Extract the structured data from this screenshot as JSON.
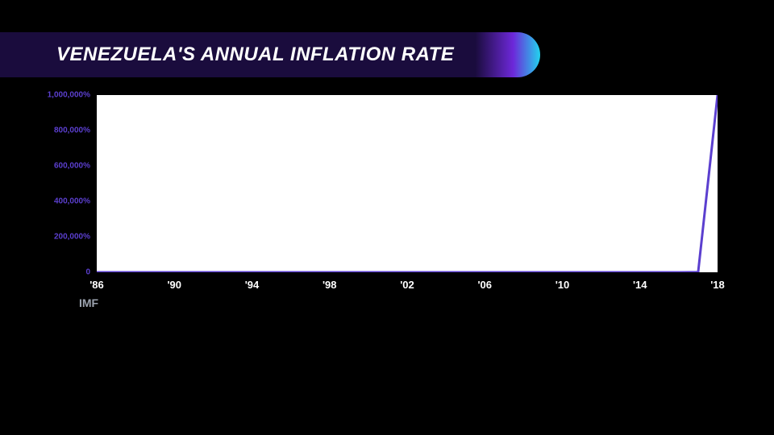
{
  "title": "VENEZUELA'S ANNUAL INFLATION RATE",
  "source": "IMF",
  "chart": {
    "type": "line",
    "background_color": "#000000",
    "plot_background_color": "#ffffff",
    "title_bar_gradient": [
      "#1a0c3d",
      "#6d28d9",
      "#22d3ee"
    ],
    "line_color": "#5b3fcf",
    "line_width": 3,
    "y_axis": {
      "color": "#5b3fcf",
      "fontsize": 10,
      "fontweight": 700,
      "min": 0,
      "max": 1000000,
      "ticks": [
        {
          "value": 0,
          "label": "0"
        },
        {
          "value": 200000,
          "label": "200,000%"
        },
        {
          "value": 400000,
          "label": "400,000%"
        },
        {
          "value": 600000,
          "label": "600,000%"
        },
        {
          "value": 800000,
          "label": "800,000%"
        },
        {
          "value": 1000000,
          "label": "1,000,000%"
        }
      ]
    },
    "x_axis": {
      "color": "#ffffff",
      "fontsize": 13,
      "fontweight": 700,
      "min": 1986,
      "max": 2018,
      "ticks": [
        {
          "value": 1986,
          "label": "'86"
        },
        {
          "value": 1990,
          "label": "'90"
        },
        {
          "value": 1994,
          "label": "'94"
        },
        {
          "value": 1998,
          "label": "'98"
        },
        {
          "value": 2002,
          "label": "'02"
        },
        {
          "value": 2006,
          "label": "'06"
        },
        {
          "value": 2010,
          "label": "'10"
        },
        {
          "value": 2014,
          "label": "'14"
        },
        {
          "value": 2018,
          "label": "'18"
        }
      ]
    },
    "series": [
      {
        "year": 1986,
        "value": 12
      },
      {
        "year": 1987,
        "value": 28
      },
      {
        "year": 1988,
        "value": 29
      },
      {
        "year": 1989,
        "value": 84
      },
      {
        "year": 1990,
        "value": 41
      },
      {
        "year": 1991,
        "value": 34
      },
      {
        "year": 1992,
        "value": 31
      },
      {
        "year": 1993,
        "value": 38
      },
      {
        "year": 1994,
        "value": 61
      },
      {
        "year": 1995,
        "value": 60
      },
      {
        "year": 1996,
        "value": 100
      },
      {
        "year": 1997,
        "value": 50
      },
      {
        "year": 1998,
        "value": 36
      },
      {
        "year": 1999,
        "value": 24
      },
      {
        "year": 2000,
        "value": 16
      },
      {
        "year": 2001,
        "value": 13
      },
      {
        "year": 2002,
        "value": 22
      },
      {
        "year": 2003,
        "value": 31
      },
      {
        "year": 2004,
        "value": 22
      },
      {
        "year": 2005,
        "value": 16
      },
      {
        "year": 2006,
        "value": 14
      },
      {
        "year": 2007,
        "value": 19
      },
      {
        "year": 2008,
        "value": 31
      },
      {
        "year": 2009,
        "value": 27
      },
      {
        "year": 2010,
        "value": 28
      },
      {
        "year": 2011,
        "value": 26
      },
      {
        "year": 2012,
        "value": 21
      },
      {
        "year": 2013,
        "value": 41
      },
      {
        "year": 2014,
        "value": 62
      },
      {
        "year": 2015,
        "value": 122
      },
      {
        "year": 2016,
        "value": 255
      },
      {
        "year": 2017,
        "value": 1088
      },
      {
        "year": 2018,
        "value": 1000000
      }
    ]
  }
}
